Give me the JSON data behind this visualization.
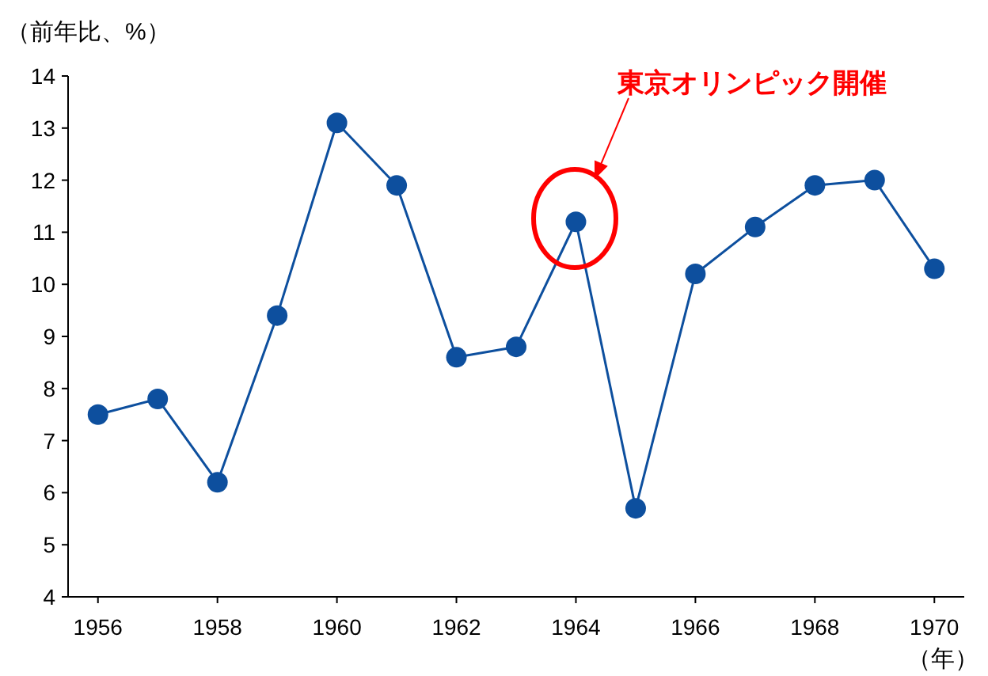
{
  "chart_data": {
    "type": "line",
    "ylabel": "（前年比、%）",
    "xlabel": "（年）",
    "x": [
      1956,
      1957,
      1958,
      1959,
      1960,
      1961,
      1962,
      1963,
      1964,
      1965,
      1966,
      1967,
      1968,
      1969,
      1970
    ],
    "series": [
      {
        "color": "#0d4f9e",
        "values": [
          7.5,
          7.8,
          6.2,
          9.4,
          13.1,
          11.9,
          8.6,
          8.8,
          11.2,
          5.7,
          10.2,
          11.1,
          11.9,
          12.0,
          10.3
        ]
      }
    ],
    "xlim": [
      1955.5,
      1970.5
    ],
    "xticks": [
      1956,
      1958,
      1960,
      1962,
      1964,
      1966,
      1968,
      1970
    ],
    "ylim": [
      4,
      14
    ],
    "yticks": [
      4,
      5,
      6,
      7,
      8,
      9,
      10,
      11,
      12,
      13,
      14
    ],
    "annotations": [
      "東京オリンピック開催"
    ],
    "marker": "circle",
    "line_style": "solid",
    "grid": false
  }
}
